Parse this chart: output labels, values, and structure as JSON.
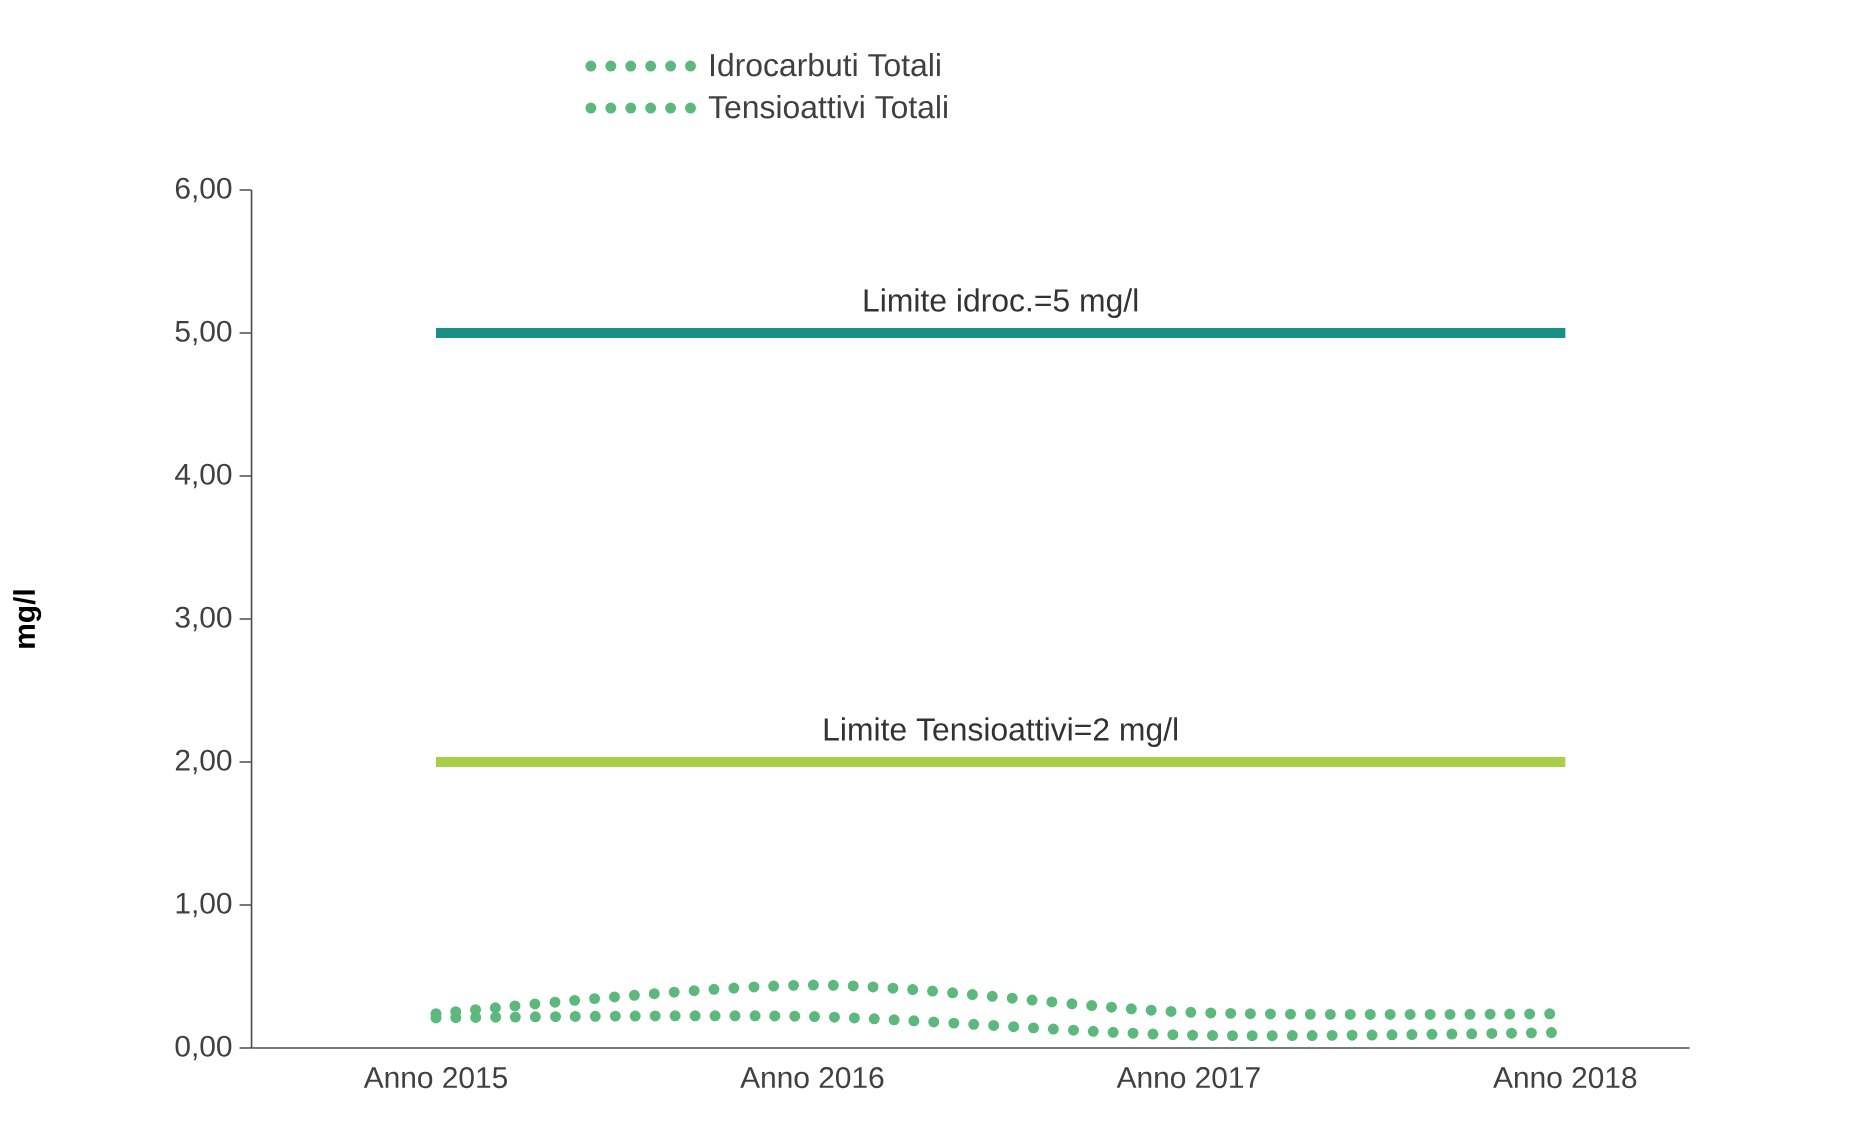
{
  "chart_data": {
    "type": "line",
    "ylabel": "mg/l",
    "categories": [
      "Anno 2015",
      "Anno 2016",
      "Anno 2017",
      "Anno 2018"
    ],
    "series": [
      {
        "name": "Idrocarbuti Totali",
        "color": "#5cb87c",
        "values": [
          0.24,
          0.44,
          0.25,
          0.24
        ]
      },
      {
        "name": "Tensioattivi Totali",
        "color": "#5cb87c",
        "values": [
          0.21,
          0.22,
          0.09,
          0.11
        ]
      }
    ],
    "ylim": [
      0,
      6
    ],
    "yticks": [
      {
        "value": 0,
        "label": "0,00"
      },
      {
        "value": 1,
        "label": "1,00"
      },
      {
        "value": 2,
        "label": "2,00"
      },
      {
        "value": 3,
        "label": "3,00"
      },
      {
        "value": 4,
        "label": "4,00"
      },
      {
        "value": 5,
        "label": "5,00"
      },
      {
        "value": 6,
        "label": "6,00"
      }
    ],
    "ref_lines": [
      {
        "axis": "y",
        "value": 5,
        "label": "Limite idroc.=5 mg/l",
        "color": "#1a8f86"
      },
      {
        "axis": "y",
        "value": 2,
        "label": "Limite Tensioattivi=2 mg/l",
        "color": "#a8cf45"
      }
    ],
    "legend": "top",
    "line_style": "dotted"
  }
}
